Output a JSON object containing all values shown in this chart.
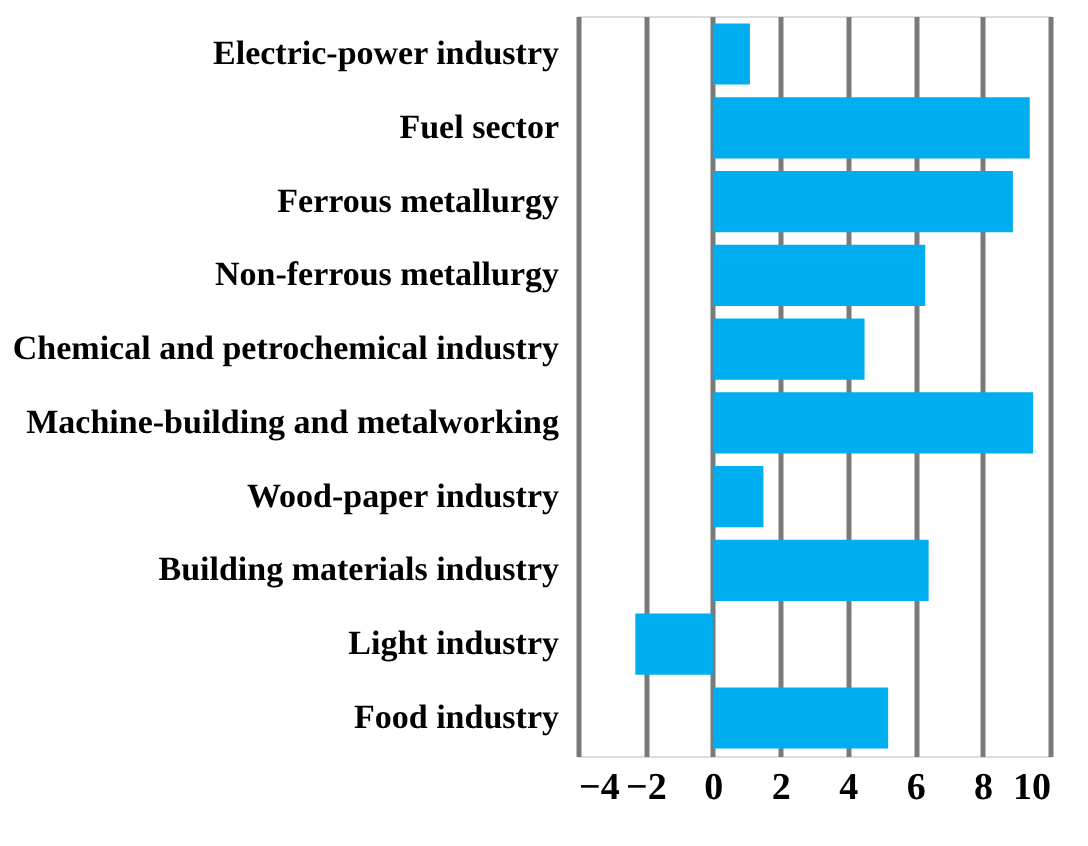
{
  "chart_data": {
    "type": "bar",
    "orientation": "horizontal",
    "categories": [
      "Electric-power industry",
      "Fuel sector",
      "Ferrous metallurgy",
      "Non-ferrous metallurgy",
      "Chemical and petrochemical industry",
      "Machine-building and metalworking",
      "Wood-paper industry",
      "Building materials industry",
      "Light industry",
      "Food industry"
    ],
    "values": [
      1.1,
      9.4,
      8.9,
      6.3,
      4.5,
      9.5,
      1.5,
      6.4,
      -2.3,
      5.2
    ],
    "color": "#00aeef",
    "xlim": [
      -4,
      10
    ],
    "xticks": [
      -4,
      -2,
      0,
      2,
      4,
      6,
      8,
      10
    ],
    "grid": "x"
  }
}
